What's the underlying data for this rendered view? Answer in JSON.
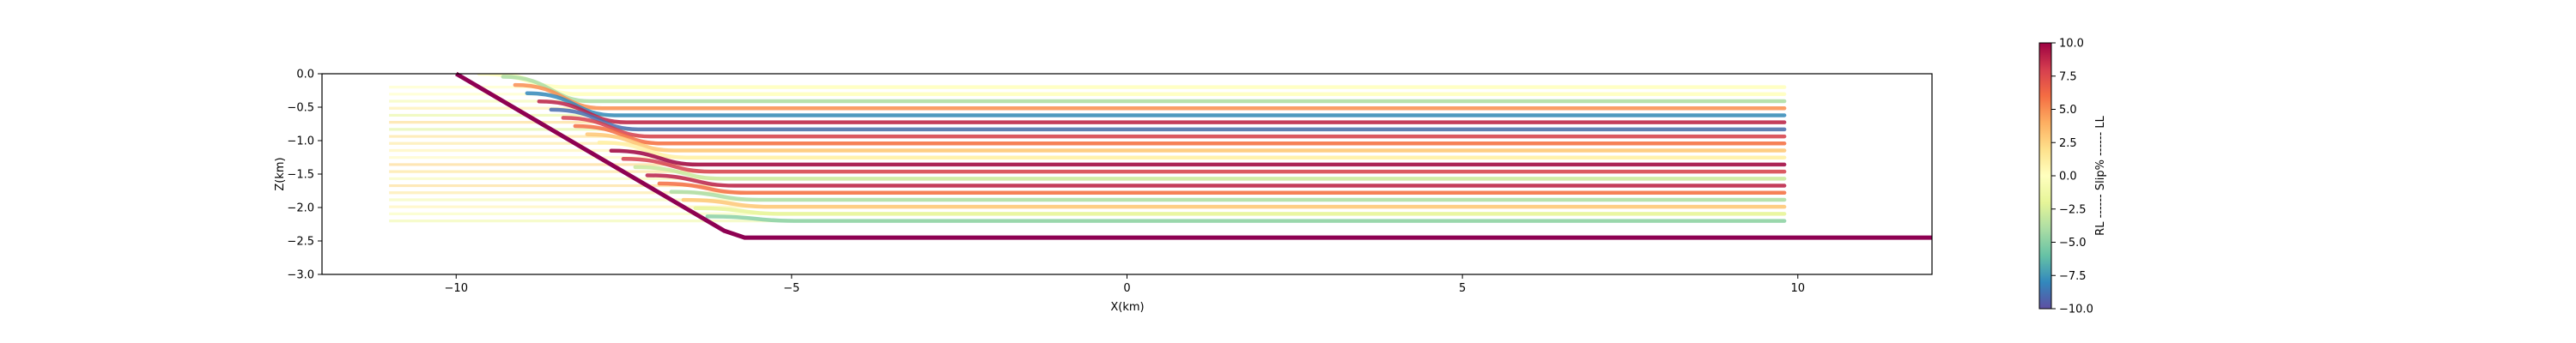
{
  "chart_data": {
    "type": "line",
    "title": "",
    "xlabel": "X(km)",
    "ylabel": "Z(km)",
    "xlim": [
      -12,
      12
    ],
    "ylim": [
      -3.0,
      0.0
    ],
    "xticks": [
      -10,
      -5,
      0,
      5,
      10
    ],
    "yticks": [
      0.0,
      -0.5,
      -1.0,
      -1.5,
      -2.0,
      -2.5,
      -3.0
    ],
    "xtick_labels": [
      "−10",
      "−5",
      "0",
      "5",
      "10"
    ],
    "ytick_labels": [
      "0.0",
      "−0.5",
      "−1.0",
      "−1.5",
      "−2.0",
      "−2.5",
      "−3.0"
    ],
    "grid": false,
    "colormap": "Spectral_r",
    "colorbar": {
      "label": "RL ------ Slip% ------ LL",
      "range": [
        -10,
        10
      ],
      "ticks": [
        10.0,
        7.5,
        5.0,
        2.5,
        0.0,
        -2.5,
        -5.0,
        -7.5,
        -10.0
      ],
      "tick_labels": [
        "10.0",
        "7.5",
        "5.0",
        "2.5",
        "0.0",
        "−2.5",
        "−5.0",
        "−7.5",
        "−10.0"
      ]
    },
    "fault": {
      "color": "#8e0152",
      "points": [
        [
          -10.0,
          0.0
        ],
        [
          -6.0,
          -2.35
        ],
        [
          -5.7,
          -2.45
        ],
        [
          12.0,
          -2.45
        ]
      ]
    },
    "layers": {
      "x_start": -11.0,
      "x_end": 9.8,
      "z_top": -0.2,
      "z_bottom": -2.2,
      "count": 20,
      "slip": [
        0,
        0,
        -4,
        5,
        -8,
        9,
        -9,
        8,
        6,
        3,
        1,
        10,
        8,
        -3,
        9,
        6,
        -4,
        3,
        -2,
        -5
      ],
      "fold_width": 1.3
    }
  }
}
